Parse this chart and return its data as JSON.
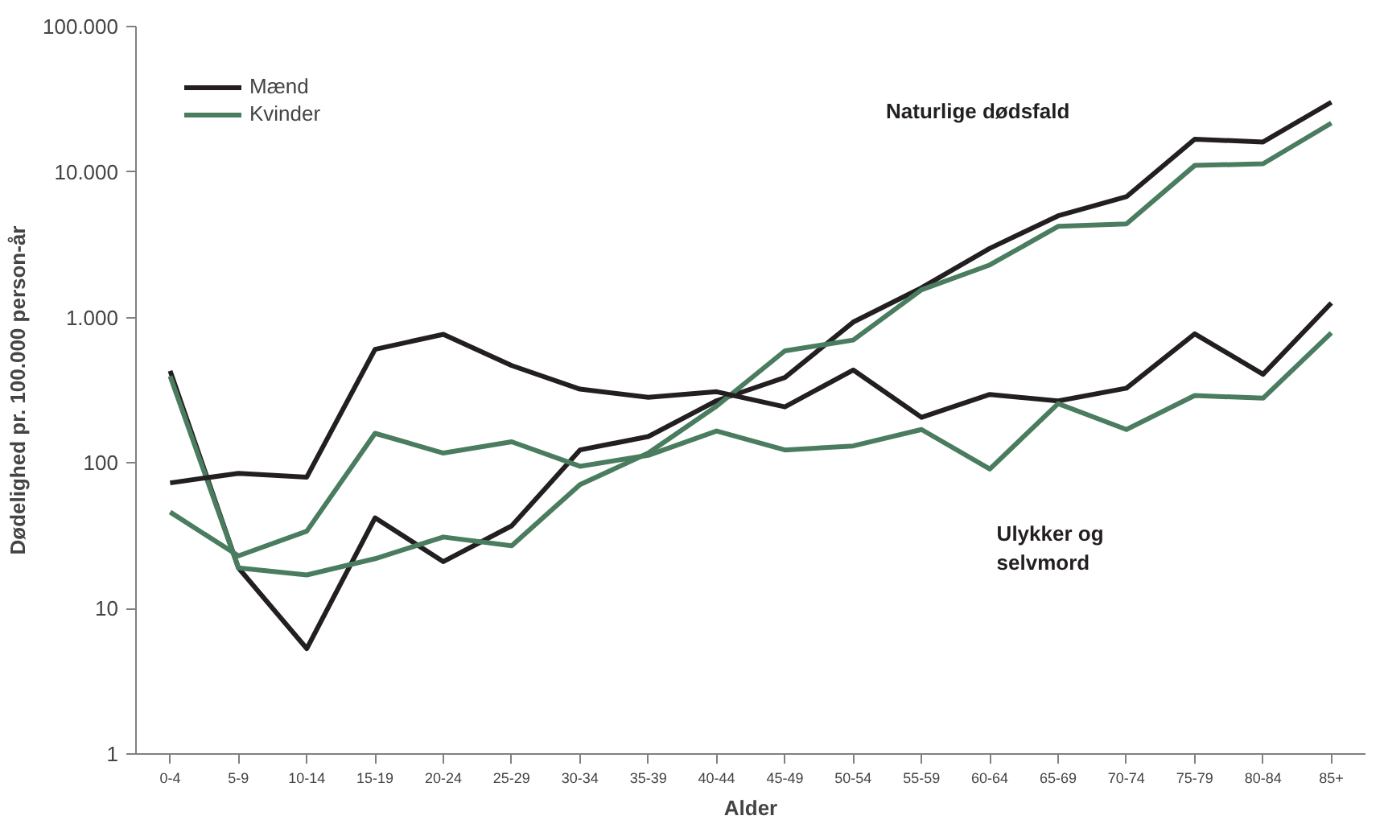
{
  "chart_data": {
    "type": "line",
    "xlabel": "Alder",
    "ylabel": "Dødelighed pr. 100.000 person-år",
    "categories": [
      "0-4",
      "5-9",
      "10-14",
      "15-19",
      "20-24",
      "25-29",
      "30-34",
      "35-39",
      "40-44",
      "45-49",
      "50-54",
      "55-59",
      "60-64",
      "65-69",
      "70-74",
      "75-79",
      "80-84",
      "85+"
    ],
    "series": [
      {
        "name": "Mænd",
        "color": "#231f20",
        "values": [
          430,
          19,
          5.3,
          42,
          21,
          37,
          123,
          152,
          268,
          387,
          930,
          1600,
          2990,
          5000,
          6770,
          16800,
          16100,
          30200
        ]
      },
      {
        "name": "Kvinder",
        "color": "#4a7c5f",
        "values": [
          395,
          19,
          17,
          22,
          31,
          27,
          71,
          117,
          246,
          590,
          700,
          1550,
          2300,
          4230,
          4400,
          11100,
          11400,
          21700
        ]
      },
      {
        "color": "#231f20",
        "values": [
          73,
          85,
          80,
          605,
          766,
          468,
          322,
          283,
          309,
          243,
          436,
          206,
          296,
          267,
          327,
          773,
          407,
          1260
        ]
      },
      {
        "color": "#4a7c5f",
        "values": [
          46,
          23,
          34,
          160,
          117,
          140,
          95,
          113,
          166,
          123,
          131,
          170,
          91,
          256,
          170,
          291,
          279,
          785
        ]
      }
    ],
    "log": "y",
    "ylim": [
      1,
      100000
    ],
    "yticks": [
      {
        "value": 1,
        "label": "1"
      },
      {
        "value": 10,
        "label": "10"
      },
      {
        "value": 100,
        "label": "100"
      },
      {
        "value": 1000,
        "label": "1.000"
      },
      {
        "value": 10000,
        "label": "10.000"
      },
      {
        "value": 100000,
        "label": "100.000"
      }
    ],
    "grid": false,
    "legend": "top left",
    "marker": "none",
    "line_style": "solid",
    "annotations": [
      "Naturlige dødsfald",
      "Ulykker og selvmord"
    ]
  }
}
